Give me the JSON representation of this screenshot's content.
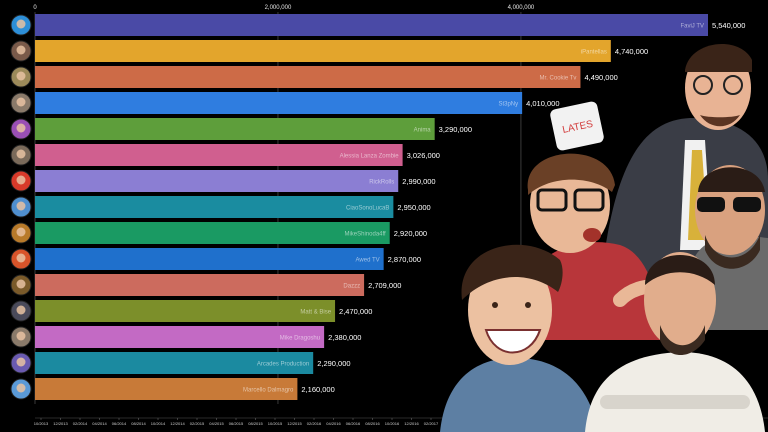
{
  "chart_data": {
    "type": "bar",
    "orientation": "horizontal",
    "title": "",
    "xlabel": "",
    "ylabel": "",
    "xlim": [
      0,
      5540000
    ],
    "x_ticks": [
      "0",
      "2,000,000",
      "4,000,000"
    ],
    "x_tick_values": [
      0,
      2000000,
      4000000
    ],
    "grid": true,
    "categories": [
      "FaviJ TV",
      "iPantellas",
      "Mr. Cookie Tv",
      "St3pNy",
      "Anima",
      "Alessia Lanza Zombie",
      "RickRolls",
      "CiaoSonoLucaB",
      "MikeShinoda4ff",
      "Awed TV",
      "Dazzz",
      "Matt & Bise",
      "Mike Dragoshu",
      "Arcades Production",
      "Marcello Dalmagro"
    ],
    "values": [
      5540000,
      4740000,
      4490000,
      4010000,
      3290000,
      3026000,
      2990000,
      2950000,
      2920000,
      2870000,
      2709000,
      2470000,
      2380000,
      2290000,
      2160000
    ],
    "value_labels": [
      "5,540,000",
      "4,740,000",
      "4,490,000",
      "4,010,000",
      "3,290,000",
      "3,026,000",
      "2,990,000",
      "2,950,000",
      "2,920,000",
      "2,870,000",
      "2,709,000",
      "2,470,000",
      "2,380,000",
      "2,290,000",
      "2,160,000"
    ],
    "colors": [
      "#4a4aa6",
      "#e3a52c",
      "#cd6b47",
      "#2f7de0",
      "#5e9e3b",
      "#d05f8f",
      "#8b7ed3",
      "#1a8ca0",
      "#1a9a63",
      "#1f70cc",
      "#cc6b5e",
      "#7c8f2a",
      "#c36ac4",
      "#1b8aa0",
      "#c87a38"
    ],
    "avatar_colors": [
      "#2d8fd8",
      "#7a5a4a",
      "#9c8a5a",
      "#8a7a6a",
      "#9a4fb5",
      "#7a6a5a",
      "#d83a2a",
      "#4f8fcf",
      "#b87a2a",
      "#d8542a",
      "#7a5a2a",
      "#4a4a5a",
      "#8a7a6a",
      "#6a5ab0",
      "#5a9ad8"
    ],
    "x_dates": [
      "10/2013",
      "12/2013",
      "02/2014",
      "04/2014",
      "06/2014",
      "08/2014",
      "10/2014",
      "12/2014",
      "02/2015",
      "04/2015",
      "06/2015",
      "08/2015",
      "10/2015",
      "12/2015",
      "02/2016",
      "04/2016",
      "06/2016",
      "08/2016",
      "10/2016",
      "12/2016",
      "02/2017"
    ]
  },
  "overlay": {
    "image": "collage-of-youtuber-portraits"
  }
}
